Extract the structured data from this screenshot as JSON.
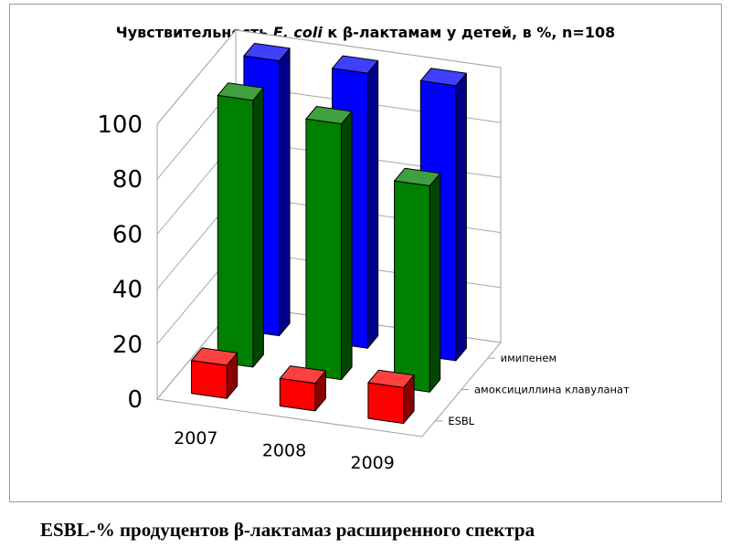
{
  "chart_data": {
    "type": "bar",
    "title_parts": {
      "before": "Чувствительность ",
      "italic": "E. coli",
      "after": "  к β-лактамам у детей, в %, n=108"
    },
    "categories": [
      "2007",
      "2008",
      "2009"
    ],
    "series": [
      {
        "name": "ESBL",
        "values": [
          12,
          10,
          13
        ],
        "color": "#ff0000"
      },
      {
        "name": "амоксициллина клавуланат",
        "values": [
          97,
          93,
          75
        ],
        "color": "#008000"
      },
      {
        "name": "имипенем",
        "values": [
          100,
          100,
          100
        ],
        "color": "#0000ff"
      }
    ],
    "yticks": [
      "0",
      "20",
      "40",
      "60",
      "80",
      "100"
    ],
    "ylim": [
      0,
      100
    ],
    "grid": true,
    "projection": "3d"
  },
  "footnote": "ESBL-% продуцентов β-лактамаз расширенного спектра"
}
